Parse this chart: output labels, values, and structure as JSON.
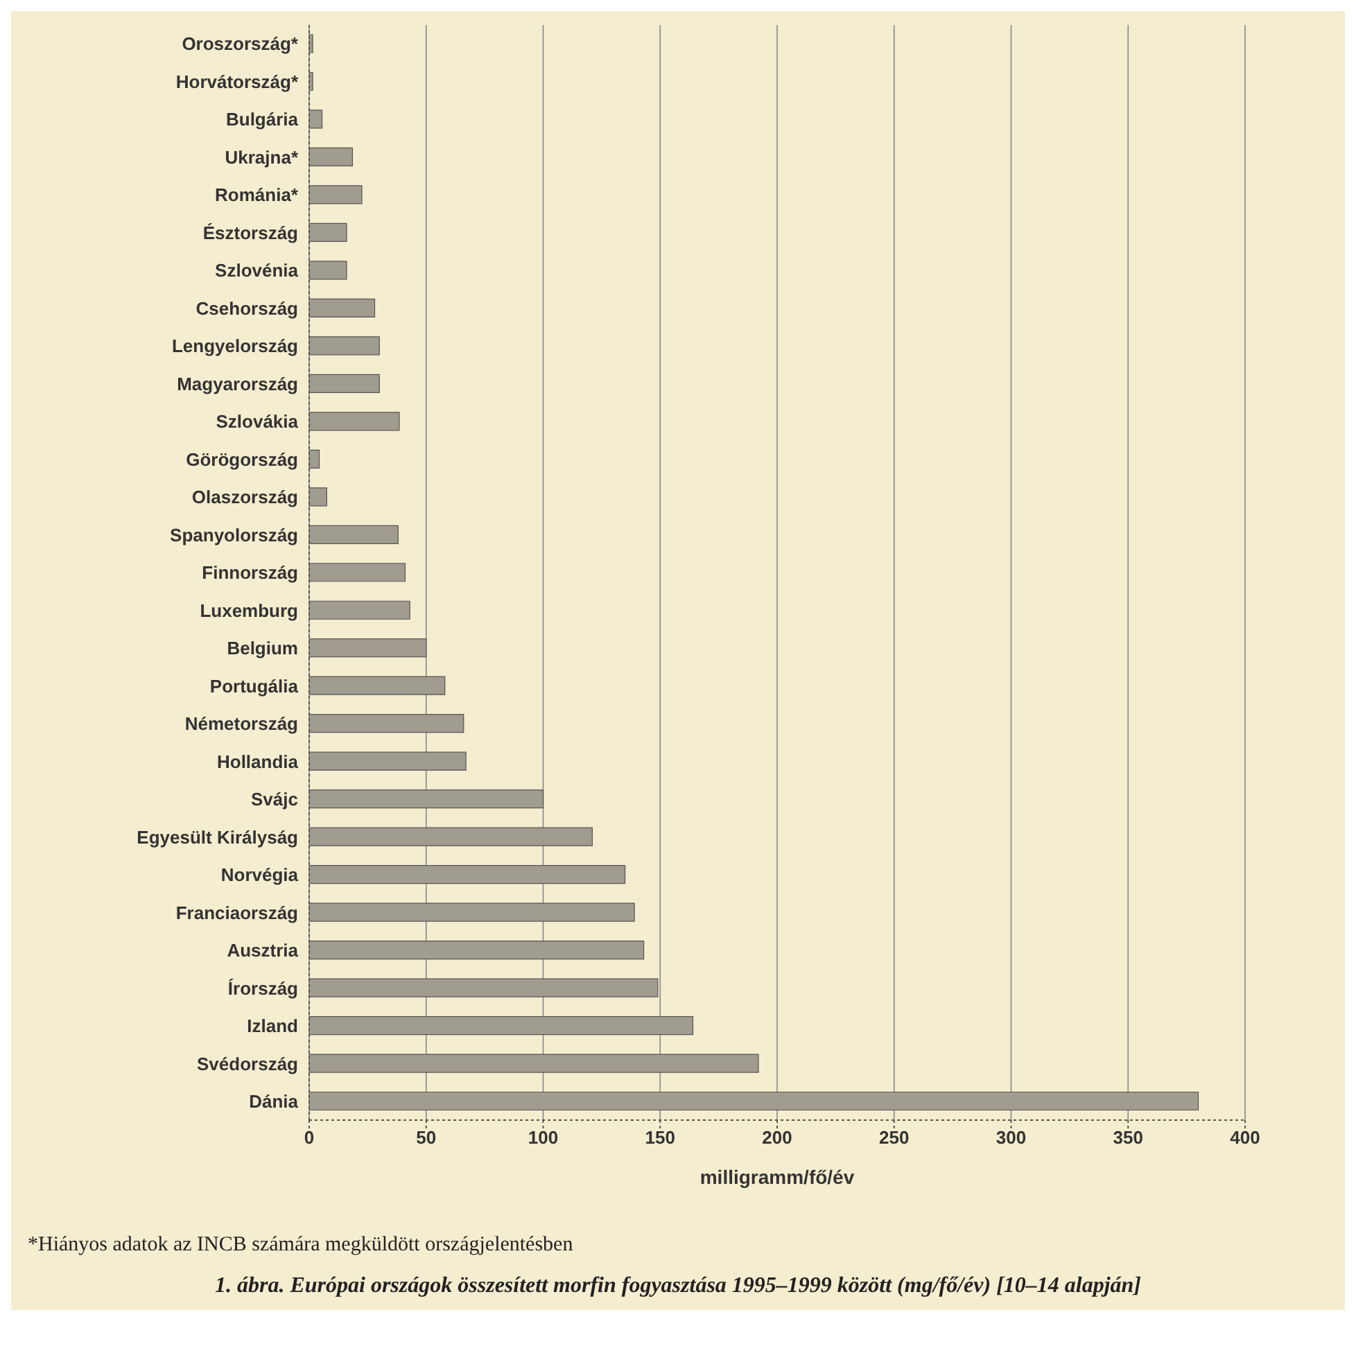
{
  "chart_data": {
    "type": "bar",
    "orientation": "horizontal",
    "title": "1. ábra. Európai országok összesített morfin fogyasztása 1995–1999 között (mg/fő/év) [10–14 alapján]",
    "xlabel": "milligramm/fő/év",
    "categories": [
      "Oroszország*",
      "Horvátország*",
      "Bulgária",
      "Ukrajna*",
      "Románia*",
      "Észtország",
      "Szlovénia",
      "Csehország",
      "Lengyelország",
      "Magyarország",
      "Szlovákia",
      "Görögország",
      "Olaszország",
      "Spanyolország",
      "Finnország",
      "Luxemburg",
      "Belgium",
      "Portugália",
      "Németország",
      "Hollandia",
      "Svájc",
      "Egyesült Királyság",
      "Norvégia",
      "Franciaország",
      "Ausztria",
      "Írország",
      "Izland",
      "Svédország",
      "Dánia"
    ],
    "values": [
      1.5,
      1.5,
      5.5,
      18.5,
      22.5,
      16,
      16,
      28,
      30,
      30,
      38.5,
      4.3,
      7.5,
      38,
      41,
      43,
      50,
      58,
      66,
      67,
      100,
      121,
      135,
      139,
      143,
      149,
      164,
      192,
      380
    ],
    "color": "#a19c90",
    "xlim": [
      0,
      400
    ],
    "xticks": [
      0,
      50,
      100,
      150,
      200,
      250,
      300,
      350,
      400
    ],
    "grid": "x",
    "annotations": [
      "*Hiányos adatok az INCB számára megküldött országjelentésben"
    ]
  }
}
